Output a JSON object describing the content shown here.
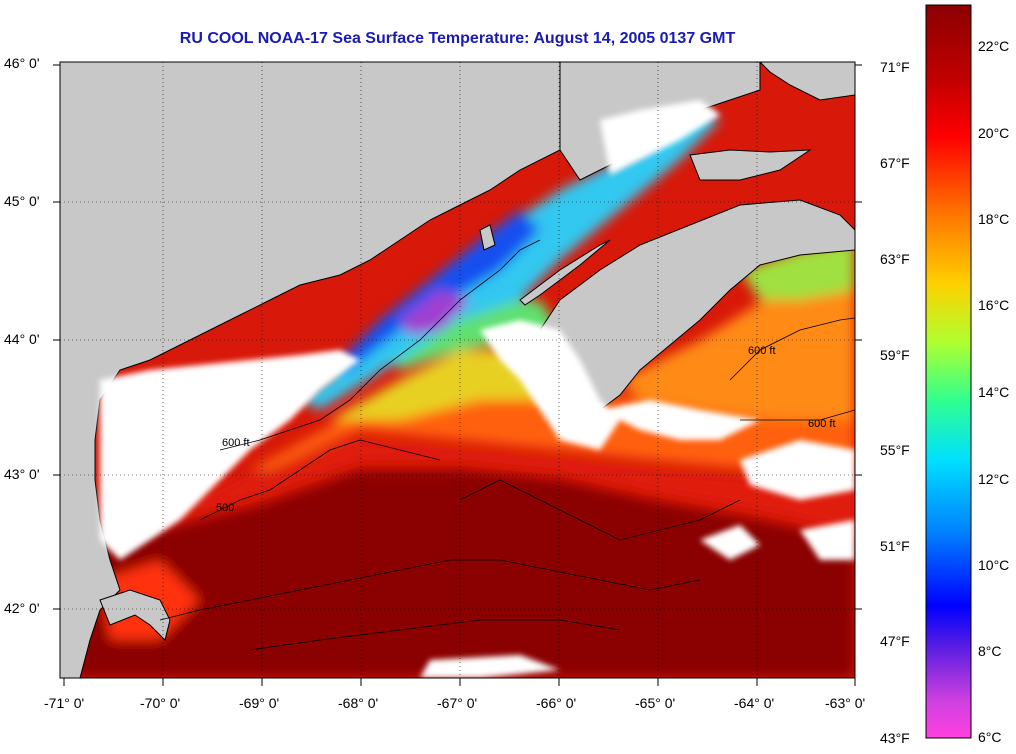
{
  "title": "RU COOL  NOAA-17  Sea Surface Temperature:  August 14, 2005 0137 GMT",
  "latitude_labels": [
    "46° 0'",
    "45° 0'",
    "44° 0'",
    "43° 0'",
    "42° 0'"
  ],
  "longitude_labels": [
    "-71° 0'",
    "-70° 0'",
    "-69° 0'",
    "-68° 0'",
    "-67° 0'",
    "-66° 0'",
    "-65° 0'",
    "-64° 0'",
    "-63° 0'"
  ],
  "contour_label": "600 ft",
  "contour_label_alt": "500",
  "colorbar": {
    "celsius_labels": [
      "22°C",
      "20°C",
      "18°C",
      "16°C",
      "14°C",
      "12°C",
      "10°C",
      "8°C",
      "6°C"
    ],
    "fahrenheit_labels": [
      "71°F",
      "67°F",
      "63°F",
      "59°F",
      "55°F",
      "51°F",
      "47°F",
      "43°F"
    ]
  },
  "colors": {
    "land": "#c8c8c8",
    "cloud": "#ffffff",
    "warm": "#8b0000",
    "cool": "#00b4ff",
    "title": "#1a1ab4"
  }
}
